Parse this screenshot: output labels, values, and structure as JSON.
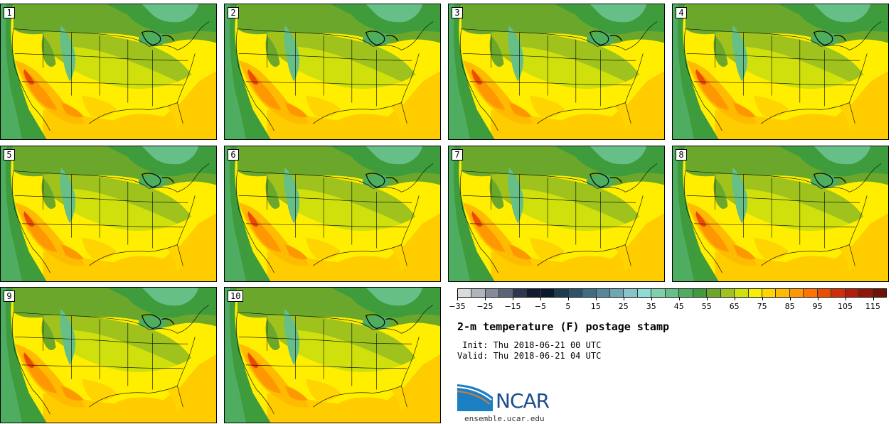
{
  "panels": [
    {
      "label": "1"
    },
    {
      "label": "2"
    },
    {
      "label": "3"
    },
    {
      "label": "4"
    },
    {
      "label": "5"
    },
    {
      "label": "6"
    },
    {
      "label": "7"
    },
    {
      "label": "8"
    },
    {
      "label": "9"
    },
    {
      "label": "10"
    }
  ],
  "colorbar": {
    "colors": [
      "#d9dbde",
      "#b0b4bc",
      "#848b99",
      "#5c6479",
      "#2e3651",
      "#141a33",
      "#0a1a2e",
      "#1c3a50",
      "#2d5269",
      "#3f6c81",
      "#56889a",
      "#6ea6b2",
      "#86c4ca",
      "#8fdcd6",
      "#7fcfa8",
      "#66bf86",
      "#4ead60",
      "#3f9c3d",
      "#6aa72a",
      "#a0c21c",
      "#cfe00c",
      "#f6f000",
      "#ffd400",
      "#ffbb00",
      "#ff9800",
      "#ff7200",
      "#ec4b00",
      "#cf2e08",
      "#b01d0a",
      "#901608",
      "#6e1207"
    ],
    "tick_labels": [
      "-35",
      "-25",
      "-15",
      "-5",
      "5",
      "15",
      "25",
      "35",
      "45",
      "55",
      "65",
      "75",
      "85",
      "95",
      "105",
      "115"
    ]
  },
  "title": "2-m temperature (F) postage stamp",
  "init_line": " Init: Thu 2018-06-21 00 UTC",
  "valid_line": "Valid: Thu 2018-06-21 04 UTC",
  "logo": {
    "text": "NCAR",
    "url": "ensemble.ucar.edu"
  }
}
